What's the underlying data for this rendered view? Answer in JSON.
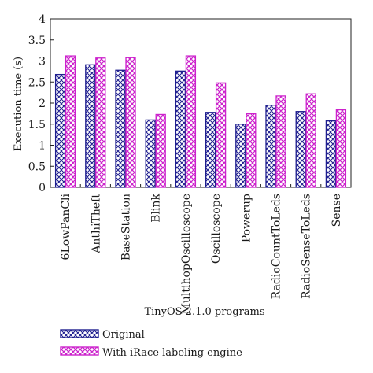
{
  "chart_data": {
    "type": "bar",
    "title": "",
    "xlabel": "TinyOS 2.1.0 programs",
    "ylabel": "Execution time (s)",
    "ylim": [
      0,
      4
    ],
    "yticks": [
      "0",
      "0.5",
      "1",
      "1.5",
      "2",
      "2.5",
      "3",
      "3.5",
      "4"
    ],
    "grid": false,
    "legend_position": "bottom-left",
    "categories": [
      "6LowPanCli",
      "AnthiTheft",
      "BaseStation",
      "Blink",
      "MultihopOscilloscope",
      "Oscilloscope",
      "Powerup",
      "RadioCountToLeds",
      "RadioSenseToLeds",
      "Sense"
    ],
    "series": [
      {
        "name": "Original",
        "values": [
          2.68,
          2.91,
          2.78,
          1.6,
          2.76,
          1.78,
          1.5,
          1.95,
          1.8,
          1.58
        ],
        "color": "#1f1f8f"
      },
      {
        "name": "With iRace labeling engine",
        "values": [
          3.12,
          3.07,
          3.08,
          1.73,
          3.12,
          2.48,
          1.75,
          2.17,
          2.22,
          1.84
        ],
        "color": "#cc22cc"
      }
    ]
  }
}
